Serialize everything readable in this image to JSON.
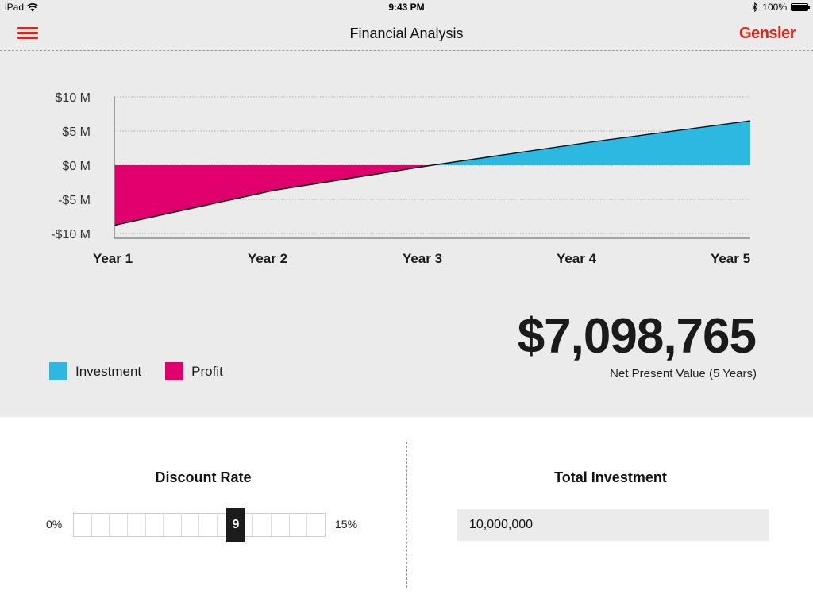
{
  "status_bar": {
    "device": "iPad",
    "time": "9:43 PM",
    "battery": "100%",
    "battery_level": 1.0
  },
  "header": {
    "title": "Financial Analysis",
    "brand": "Gensler"
  },
  "colors": {
    "investment": "#2cb8e0",
    "profit": "#e0006d",
    "accent": "#e2231a"
  },
  "chart_data": {
    "type": "area",
    "x": [
      "Year 1",
      "Year 2",
      "Year 3",
      "Year 4",
      "Year 5"
    ],
    "y_ticks": [
      "$10 M",
      "$5 M",
      "$0 M",
      "-$5 M",
      "-$10 M"
    ],
    "ylim": [
      -10,
      10
    ],
    "series": [
      {
        "name": "Investment",
        "values": [
          -8.8,
          -3.7,
          0,
          3.4,
          6.5
        ]
      }
    ],
    "legend": [
      "Investment",
      "Profit"
    ],
    "grid": true,
    "legend_position": "bottom-left"
  },
  "legend": {
    "investment": "Investment",
    "profit": "Profit"
  },
  "npv": {
    "value": "$7,098,765",
    "label": "Net Present Value (5 Years)"
  },
  "discount_rate": {
    "title": "Discount Rate",
    "min": "0%",
    "max": "15%",
    "value": "9"
  },
  "total_investment": {
    "title": "Total Investment",
    "value": "10,000,000"
  }
}
